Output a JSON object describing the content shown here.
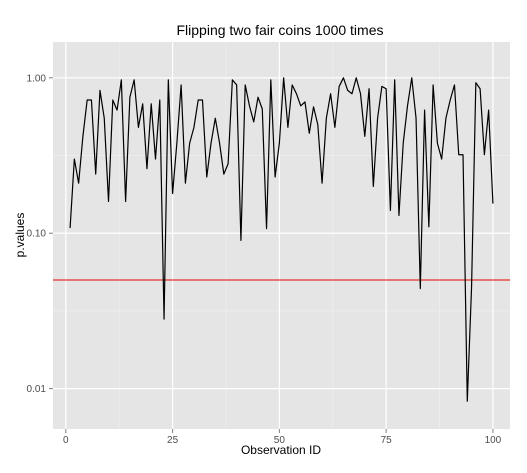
{
  "chart_data": {
    "type": "line",
    "title": "Flipping two fair coins 1000 times",
    "xlabel": "Observation ID",
    "ylabel": "p.values",
    "xlim": [
      -3,
      104
    ],
    "ylim": [
      0.0055,
      1.7
    ],
    "yscale": "log",
    "grid": true,
    "x_ticks": [
      0,
      25,
      50,
      75,
      100
    ],
    "x_tick_labels": [
      "0",
      "25",
      "50",
      "75",
      "100"
    ],
    "y_ticks": [
      0.01,
      0.1,
      1.0
    ],
    "y_tick_labels": [
      "0.01",
      "0.10",
      "1.00"
    ],
    "threshold": {
      "value": 0.05,
      "color": "#e8332a"
    },
    "colors": {
      "panel": "#e5e5e5",
      "grid_major": "#ffffff",
      "grid_minor": "#f0f0f0",
      "line": "#000000"
    },
    "series": [
      {
        "x": [
          1,
          2,
          3,
          4,
          5,
          6,
          7,
          8,
          9,
          10,
          11,
          12,
          13,
          14,
          15,
          16,
          17,
          18,
          19,
          20,
          21,
          22,
          23,
          24,
          25,
          26,
          27,
          28,
          29,
          30,
          31,
          32,
          33,
          34,
          35,
          36,
          37,
          38,
          39,
          40,
          41,
          42,
          43,
          44,
          45,
          46,
          47,
          48,
          49,
          50,
          51,
          52,
          53,
          54,
          55,
          56,
          57,
          58,
          59,
          60,
          61,
          62,
          63,
          64,
          65,
          66,
          67,
          68,
          69,
          70,
          71,
          72,
          73,
          74,
          75,
          76,
          77,
          78,
          79,
          80,
          81,
          82,
          83,
          84,
          85,
          86,
          87,
          88,
          89,
          90,
          91,
          92,
          93,
          94,
          95,
          96,
          97,
          98,
          99,
          100
        ],
        "values": [
          0.108,
          0.3,
          0.21,
          0.42,
          0.72,
          0.72,
          0.24,
          0.83,
          0.55,
          0.16,
          0.72,
          0.62,
          0.97,
          0.16,
          0.75,
          0.97,
          0.48,
          0.68,
          0.26,
          0.68,
          0.3,
          0.72,
          0.028,
          0.97,
          0.18,
          0.38,
          0.9,
          0.21,
          0.38,
          0.48,
          0.72,
          0.72,
          0.23,
          0.38,
          0.55,
          0.38,
          0.24,
          0.28,
          0.97,
          0.9,
          0.09,
          0.9,
          0.66,
          0.52,
          0.75,
          0.63,
          0.107,
          0.97,
          0.23,
          0.38,
          1.0,
          0.48,
          0.9,
          0.79,
          0.66,
          0.7,
          0.44,
          0.65,
          0.5,
          0.21,
          0.55,
          0.79,
          0.48,
          0.88,
          1.0,
          0.83,
          0.79,
          1.0,
          0.79,
          0.42,
          0.85,
          0.2,
          0.55,
          0.88,
          0.85,
          0.14,
          0.97,
          0.13,
          0.38,
          0.66,
          1.0,
          0.55,
          0.044,
          0.62,
          0.11,
          0.9,
          0.38,
          0.3,
          0.55,
          0.72,
          0.9,
          0.32,
          0.32,
          0.0083,
          0.045,
          0.93,
          0.85,
          0.32,
          0.62,
          0.155
        ]
      }
    ]
  }
}
